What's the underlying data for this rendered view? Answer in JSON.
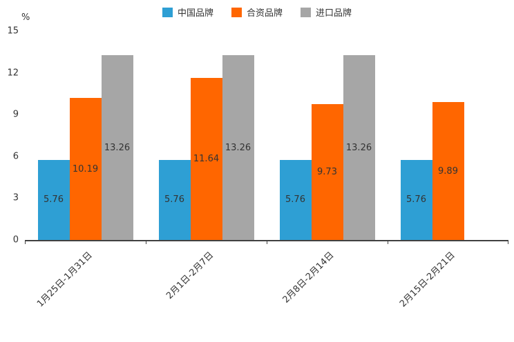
{
  "unit_label": "%",
  "chart_data": {
    "type": "bar",
    "title": "",
    "categories": [
      "1月25日-1月31日",
      "2月1日-2月7日",
      "2月8日-2月14日",
      "2月15日-2月21日"
    ],
    "series": [
      {
        "name": "中国品牌",
        "color": "#2E9FD4",
        "values": [
          5.76,
          5.76,
          5.76,
          5.76
        ]
      },
      {
        "name": "合资品牌",
        "color": "#FF6600",
        "values": [
          10.19,
          11.64,
          9.73,
          9.89
        ]
      },
      {
        "name": "进口品牌",
        "color": "#A6A6A6",
        "values": [
          13.26,
          13.26,
          13.26,
          null
        ]
      }
    ],
    "xlabel": "",
    "ylabel": "%",
    "ylim": [
      0,
      15
    ],
    "yticks": [
      0,
      3,
      6,
      9,
      12,
      15
    ],
    "grid": false,
    "legend_position": "top",
    "bar_label_decimals": 2
  }
}
